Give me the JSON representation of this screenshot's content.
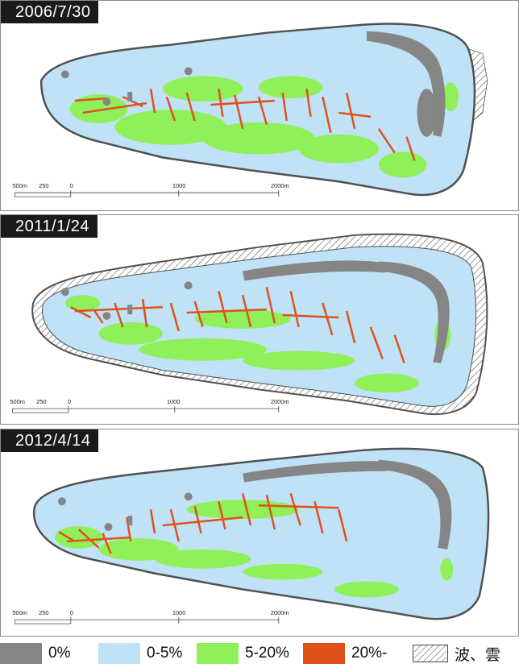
{
  "panels": [
    {
      "date": "2006/7/30"
    },
    {
      "date": "2011/1/24"
    },
    {
      "date": "2012/4/14"
    }
  ],
  "scale_bar": {
    "labels": [
      "500m",
      "250",
      "0",
      "1000",
      "2000m"
    ]
  },
  "legend": [
    {
      "label": "0%",
      "color": "#858585"
    },
    {
      "label": "0-5%",
      "color": "#bfe2f7"
    },
    {
      "label": "5-20%",
      "color": "#8ff05a"
    },
    {
      "label": "20%-",
      "color": "#e0501a"
    },
    {
      "label": "波、雲",
      "pattern": "diagonal-hatch"
    }
  ],
  "colors": {
    "coral_0": "#858585",
    "coral_0_5": "#bfe2f7",
    "coral_5_20": "#8ff05a",
    "coral_20_plus": "#e0501a",
    "outline": "#505050"
  }
}
